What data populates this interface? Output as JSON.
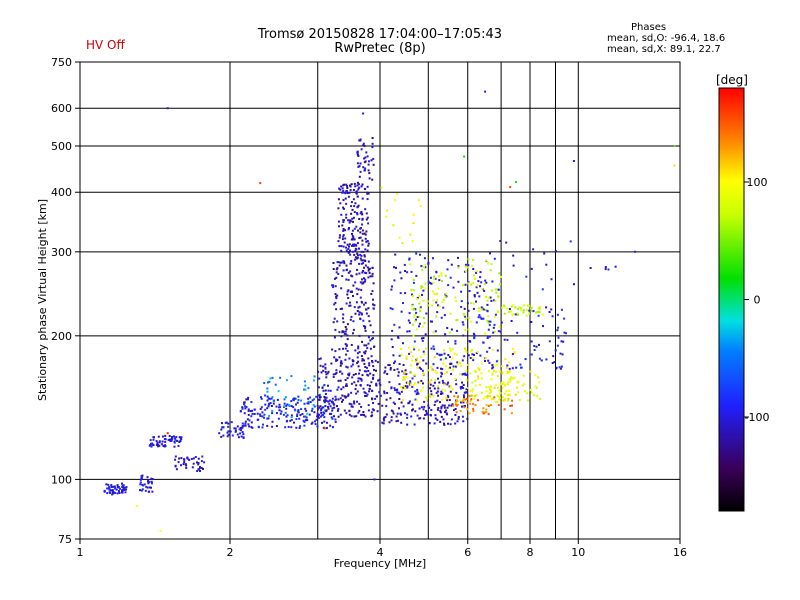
{
  "header": {
    "station_time": "Tromsø 20150828 17:04:00–17:05:43",
    "program": "RwPretec (8p)",
    "hv_status": "HV Off",
    "hv_color": "#cc0000"
  },
  "phases_box": {
    "title": "Phases",
    "line_o": "mean, sd,O: -96.4, 18.6",
    "line_x": "mean, sd,X:  89.1, 22.7"
  },
  "colorbar": {
    "unit": "[deg]",
    "ticks": [
      {
        "value": 100,
        "label": "100"
      },
      {
        "value": 0,
        "label": "0"
      },
      {
        "value": -100,
        "label": "-100"
      }
    ],
    "range": [
      -180,
      180
    ]
  },
  "chart_data": {
    "type": "scatter",
    "title": "Tromsø 20150828 17:04:00–17:05:43",
    "subtitle": "RwPretec (8p)",
    "xlabel": "Frequency [MHz]",
    "ylabel": "Stationary phase Virtual Height [km]",
    "x_scale": "log",
    "y_scale": "log",
    "xlim": [
      1,
      16
    ],
    "ylim": [
      75,
      750
    ],
    "x_ticks": [
      {
        "value": 1,
        "label": "1"
      },
      {
        "value": 2,
        "label": "2"
      },
      {
        "value": 4,
        "label": "4"
      },
      {
        "value": 6,
        "label": "6"
      },
      {
        "value": 8,
        "label": "8"
      },
      {
        "value": 10,
        "label": "10"
      },
      {
        "value": 16,
        "label": "16"
      }
    ],
    "x_grid": [
      2,
      3,
      4,
      5,
      6,
      7,
      8,
      9,
      10
    ],
    "y_ticks": [
      {
        "value": 75,
        "label": "75"
      },
      {
        "value": 100,
        "label": "100"
      },
      {
        "value": 200,
        "label": "200"
      },
      {
        "value": 300,
        "label": "300"
      },
      {
        "value": 400,
        "label": "400"
      },
      {
        "value": 500,
        "label": "500"
      },
      {
        "value": 600,
        "label": "600"
      },
      {
        "value": 750,
        "label": "750"
      }
    ],
    "y_grid": [
      100,
      200,
      300,
      400,
      500,
      600
    ],
    "color_by": "phase_deg",
    "clusters": [
      {
        "f": [
          1.12,
          1.24
        ],
        "h": [
          93,
          98
        ],
        "phase": -100,
        "count": 55
      },
      {
        "f": [
          1.3,
          1.4
        ],
        "h": [
          94,
          102
        ],
        "phase": -100,
        "count": 30
      },
      {
        "f": [
          1.38,
          1.6
        ],
        "h": [
          117,
          124
        ],
        "phase": -100,
        "count": 60
      },
      {
        "f": [
          1.55,
          1.78
        ],
        "h": [
          104,
          112
        ],
        "phase": -105,
        "count": 40
      },
      {
        "f": [
          1.9,
          2.15
        ],
        "h": [
          122,
          132
        ],
        "phase": -100,
        "count": 40
      },
      {
        "f": [
          2.1,
          3.3
        ],
        "h": [
          128,
          150
        ],
        "phase": -95,
        "count": 200
      },
      {
        "f": [
          2.3,
          3.1
        ],
        "h": [
          135,
          165
        ],
        "phase": -40,
        "count": 40
      },
      {
        "f": [
          3.0,
          4.0
        ],
        "h": [
          135,
          180
        ],
        "phase": -110,
        "count": 220
      },
      {
        "f": [
          3.2,
          3.9
        ],
        "h": [
          180,
          290
        ],
        "phase": -112,
        "count": 200
      },
      {
        "f": [
          3.3,
          3.8
        ],
        "h": [
          290,
          420
        ],
        "phase": -112,
        "count": 180
      },
      {
        "f": [
          3.6,
          3.9
        ],
        "h": [
          420,
          520
        ],
        "phase": -115,
        "count": 40
      },
      {
        "f": [
          4.0,
          6.0
        ],
        "h": [
          130,
          175
        ],
        "phase": -110,
        "count": 240
      },
      {
        "f": [
          4.2,
          6.8
        ],
        "h": [
          175,
          300
        ],
        "phase": -100,
        "count": 180
      },
      {
        "f": [
          4.4,
          7.5
        ],
        "h": [
          145,
          190
        ],
        "phase": 95,
        "count": 160
      },
      {
        "f": [
          4.6,
          7.0
        ],
        "h": [
          200,
          290
        ],
        "phase": 75,
        "count": 120
      },
      {
        "f": [
          5.6,
          7.4
        ],
        "h": [
          137,
          150
        ],
        "phase": 140,
        "count": 50
      },
      {
        "f": [
          6.0,
          8.4
        ],
        "h": [
          145,
          170
        ],
        "phase": 90,
        "count": 70
      },
      {
        "f": [
          7.0,
          8.5
        ],
        "h": [
          220,
          232
        ],
        "phase": 70,
        "count": 40
      },
      {
        "f": [
          6.0,
          9.5
        ],
        "h": [
          170,
          230
        ],
        "phase": -95,
        "count": 90
      },
      {
        "f": [
          4.0,
          5.0
        ],
        "h": [
          310,
          420
        ],
        "phase": 90,
        "count": 14
      },
      {
        "f": [
          6.5,
          12.0
        ],
        "h": [
          240,
          320
        ],
        "phase": -100,
        "count": 20
      }
    ],
    "isolated_points": [
      {
        "f": 1.5,
        "h": 600,
        "phase": -100
      },
      {
        "f": 2.3,
        "h": 418,
        "phase": 160
      },
      {
        "f": 3.9,
        "h": 100,
        "phase": -100
      },
      {
        "f": 3.7,
        "h": 585,
        "phase": -100
      },
      {
        "f": 6.5,
        "h": 650,
        "phase": -100
      },
      {
        "f": 9.8,
        "h": 465,
        "phase": -100
      },
      {
        "f": 15.6,
        "h": 500,
        "phase": 40
      },
      {
        "f": 15.6,
        "h": 455,
        "phase": 110
      },
      {
        "f": 7.5,
        "h": 420,
        "phase": 20
      },
      {
        "f": 7.3,
        "h": 410,
        "phase": 160
      },
      {
        "f": 5.9,
        "h": 475,
        "phase": 20
      },
      {
        "f": 1.5,
        "h": 125,
        "phase": 170
      },
      {
        "f": 1.45,
        "h": 78,
        "phase": 100
      },
      {
        "f": 1.3,
        "h": 88,
        "phase": 100
      },
      {
        "f": 13.0,
        "h": 300,
        "phase": -100
      },
      {
        "f": 3.1,
        "h": 128,
        "phase": 160
      }
    ]
  }
}
